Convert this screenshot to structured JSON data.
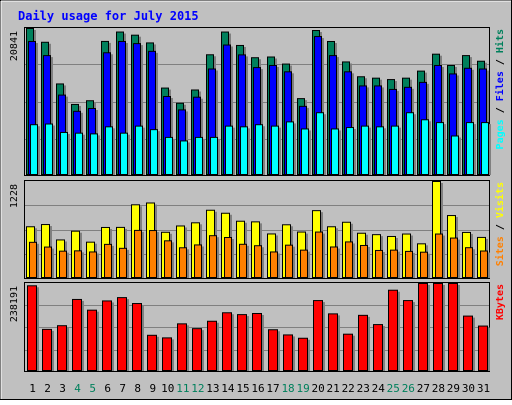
{
  "chart_data": {
    "type": "bar",
    "title": "Daily usage for July 2015",
    "categories": [
      "1",
      "2",
      "3",
      "4",
      "5",
      "6",
      "7",
      "8",
      "9",
      "10",
      "11",
      "12",
      "13",
      "14",
      "15",
      "16",
      "17",
      "18",
      "19",
      "20",
      "21",
      "22",
      "23",
      "24",
      "25",
      "26",
      "27",
      "28",
      "29",
      "30",
      "31"
    ],
    "weekend_days": [
      "4",
      "5",
      "11",
      "12",
      "18",
      "19",
      "25",
      "26"
    ],
    "panels": [
      {
        "id": "requests",
        "ylabel_parts": [
          "Pages",
          "Files",
          "Hits"
        ],
        "ymax_label": "20841",
        "ylim": [
          0,
          20841
        ],
        "series": [
          {
            "name": "Hits",
            "color": "#00805c",
            "values": [
              20841,
              18889,
              12982,
              10075,
              10600,
              19009,
              20341,
              19894,
              18797,
              12396,
              10243,
              12124,
              17117,
              20340,
              18436,
              16700,
              16800,
              15800,
              10900,
              20555,
              19000,
              16100,
              14000,
              13800,
              13600,
              13800,
              14800,
              17200,
              15600,
              17000,
              16200
            ]
          },
          {
            "name": "Files",
            "color": "#0000ff",
            "values": [
              19000,
              17000,
              11400,
              9100,
              9500,
              17400,
              19000,
              18700,
              17600,
              11200,
              9300,
              11100,
              15100,
              18500,
              17100,
              15300,
              15600,
              14700,
              9800,
              19700,
              17000,
              14700,
              12700,
              12700,
              12200,
              12500,
              13200,
              15600,
              14400,
              15200,
              15100
            ]
          },
          {
            "name": "Pages",
            "color": "#00ffff",
            "values": [
              7200,
              7300,
              6100,
              6000,
              5900,
              6900,
              6000,
              7000,
              6500,
              5400,
              4900,
              5400,
              5400,
              7000,
              6900,
              7200,
              7000,
              7600,
              6600,
              8900,
              6600,
              6800,
              7000,
              6900,
              7000,
              8900,
              7900,
              7500,
              5600,
              7500,
              7500
            ]
          }
        ]
      },
      {
        "id": "visitors",
        "ylabel_parts": [
          "Sites",
          "Visits"
        ],
        "ymax_label": "1228",
        "ylim": [
          0,
          1228
        ],
        "series": [
          {
            "name": "Visits",
            "color": "#ffff00",
            "values": [
              655,
              683,
              488,
              599,
              460,
              646,
              647,
              933,
              956,
              585,
              665,
              705,
              864,
              826,
              725,
              717,
              564,
              680,
              588,
              859,
              655,
              712,
              573,
              555,
              532,
              563,
              439,
              1228,
              797,
              583,
              520
            ]
          },
          {
            "name": "Sites",
            "color": "#ff8000",
            "values": [
              458,
              398,
              346,
              350,
              336,
              432,
              382,
              609,
              607,
              477,
              389,
              425,
              542,
              519,
              433,
              415,
              336,
              422,
              359,
              588,
              399,
              463,
              418,
              355,
              359,
              343,
              333,
              563,
              512,
              390,
              348
            ]
          }
        ]
      },
      {
        "id": "kbytes",
        "ylabel_parts": [
          "KBytes"
        ],
        "ymax_label": "238191",
        "ylim": [
          0,
          238191
        ],
        "series": [
          {
            "name": "KBytes",
            "color": "#ff0000",
            "values": [
              232000,
              114000,
              124000,
              195000,
              166000,
              191000,
              200000,
              184000,
              98000,
              91000,
              129000,
              116000,
              136000,
              159000,
              154000,
              157000,
              113000,
              99000,
              90000,
              192000,
              156000,
              101000,
              152000,
              127000,
              220000,
              192000,
              240000,
              240000,
              240000,
              150000,
              123000
            ]
          }
        ]
      }
    ],
    "grid": true,
    "legend": "right"
  }
}
